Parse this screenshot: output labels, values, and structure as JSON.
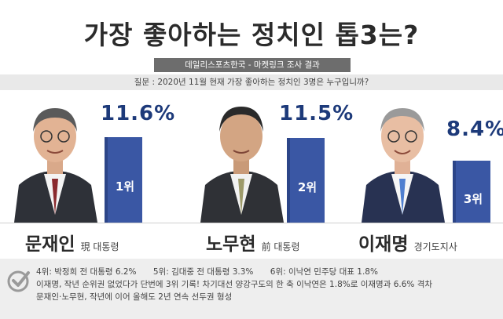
{
  "title": "가장 좋아하는 정치인 톱3는?",
  "source": "데일리스포츠한국 - 마켓링크 조사 결과",
  "question": "질문 : 2020년 11월 현재 가장 좋아하는 정치인 3명은 누구입니까?",
  "chart_data": {
    "type": "bar",
    "categories": [
      "문재인",
      "노무현",
      "이재명"
    ],
    "values": [
      11.6,
      11.5,
      8.4
    ],
    "value_labels": [
      "11.6%",
      "11.5%",
      "8.4%"
    ],
    "ranks": [
      "1위",
      "2위",
      "3위"
    ],
    "roles": [
      "現 대통령",
      "前 대통령",
      "경기도지사"
    ],
    "ylim": [
      0,
      13
    ]
  },
  "colors": {
    "bar": "#3a57a4",
    "value_text": "#1d3a7a"
  },
  "notes": {
    "line1": [
      "4위: 박정희 전 대통령 6.2%",
      "5위: 김대중 전 대통령 3.3%",
      "6위: 이낙연 민주당 대표 1.8%"
    ],
    "line2": "이재명, 작년 순위권 없었다가 단번에 3위 기록!  차기대선 양강구도의 한 축 이낙연은 1.8%로  이재명과 6.6% 격차",
    "line3": "문재인·노무현, 작년에 이어 올해도 2년 연속 선두권 형성"
  }
}
